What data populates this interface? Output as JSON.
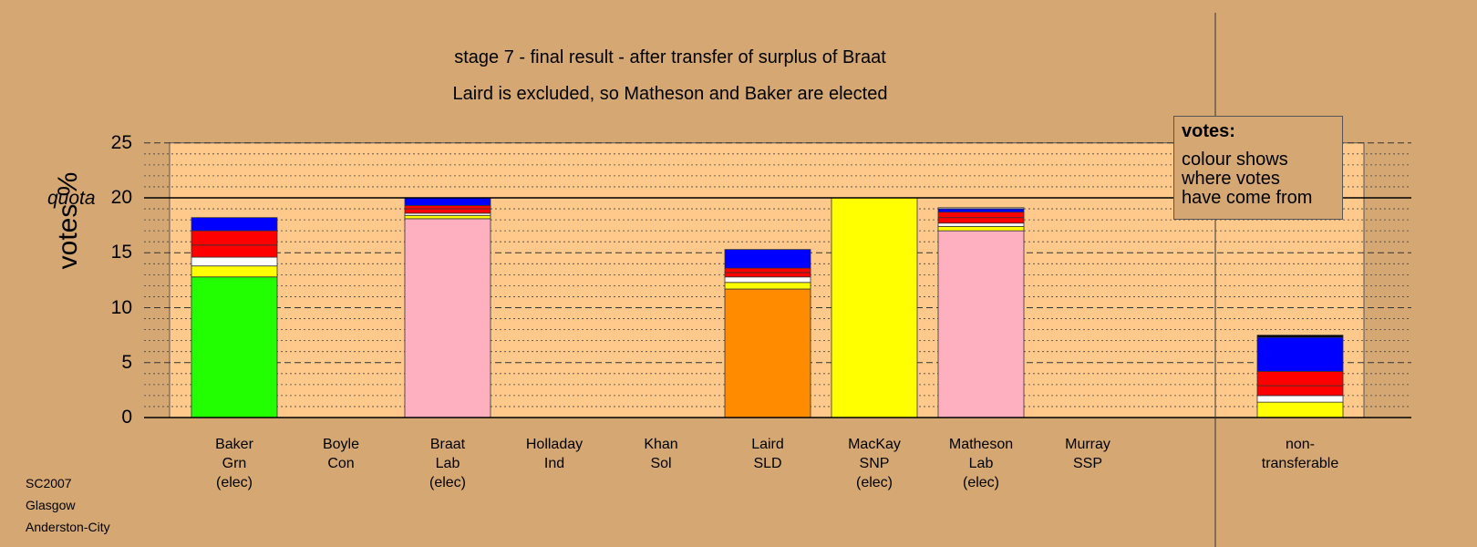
{
  "chart_data": {
    "type": "bar",
    "stacked": true,
    "title": "stage 7 - final result - after transfer of surplus of Braat",
    "subtitle": "Laird is excluded, so Matheson and Baker are elected",
    "ylabel": "votes %",
    "ylim": [
      0,
      25
    ],
    "yticks": [
      0,
      5,
      10,
      15,
      20,
      25
    ],
    "quota": {
      "label": "quota",
      "value": 20
    },
    "grid": "dashed major lines at 5, dotted minor lines at 1",
    "legend": {
      "heading": "votes:",
      "lines": [
        "colour shows",
        "where votes",
        "have come from"
      ],
      "position": "top-right"
    },
    "categories": [
      {
        "name": "Baker",
        "party": "Grn",
        "status": "(elec)"
      },
      {
        "name": "Boyle",
        "party": "Con",
        "status": ""
      },
      {
        "name": "Braat",
        "party": "Lab",
        "status": "(elec)"
      },
      {
        "name": "Holladay",
        "party": "Ind",
        "status": ""
      },
      {
        "name": "Khan",
        "party": "Sol",
        "status": ""
      },
      {
        "name": "Laird",
        "party": "SLD",
        "status": ""
      },
      {
        "name": "MacKay",
        "party": "SNP",
        "status": "(elec)"
      },
      {
        "name": "Matheson",
        "party": "Lab",
        "status": "(elec)"
      },
      {
        "name": "Murray",
        "party": "SSP",
        "status": ""
      },
      {
        "name": "non-",
        "party": "transferable",
        "status": ""
      }
    ],
    "stacks": [
      [
        {
          "value": 12.8,
          "color": "#22ff00"
        },
        {
          "value": 1.0,
          "color": "#ffff00"
        },
        {
          "value": 0.8,
          "color": "#ffffff"
        },
        {
          "value": 1.1,
          "color": "#ff0000"
        },
        {
          "value": 1.3,
          "color": "#ff0000"
        },
        {
          "value": 1.2,
          "color": "#0000ff"
        }
      ],
      [],
      [
        {
          "value": 18.1,
          "color": "#ffb0c0"
        },
        {
          "value": 0.3,
          "color": "#ffff00"
        },
        {
          "value": 0.2,
          "color": "#ffffff"
        },
        {
          "value": 0.4,
          "color": "#ff0000"
        },
        {
          "value": 0.3,
          "color": "#ff0000"
        },
        {
          "value": 0.7,
          "color": "#0000ff"
        }
      ],
      [],
      [],
      [
        {
          "value": 11.7,
          "color": "#ff8c00"
        },
        {
          "value": 0.6,
          "color": "#ffff00"
        },
        {
          "value": 0.5,
          "color": "#ffffff"
        },
        {
          "value": 0.4,
          "color": "#ff0000"
        },
        {
          "value": 0.4,
          "color": "#ff0000"
        },
        {
          "value": 1.7,
          "color": "#0000ff"
        }
      ],
      [
        {
          "value": 20.0,
          "color": "#ffff00"
        }
      ],
      [
        {
          "value": 17.0,
          "color": "#ffb0c0"
        },
        {
          "value": 0.4,
          "color": "#ffff00"
        },
        {
          "value": 0.3,
          "color": "#ffffff"
        },
        {
          "value": 0.5,
          "color": "#ff0000"
        },
        {
          "value": 0.5,
          "color": "#ff0000"
        },
        {
          "value": 0.3,
          "color": "#0000ff"
        },
        {
          "value": 0.1,
          "color": "#ffffff"
        }
      ],
      [],
      [
        {
          "value": 1.4,
          "color": "#ffff00"
        },
        {
          "value": 0.6,
          "color": "#ffffff"
        },
        {
          "value": 0.9,
          "color": "#ff0000"
        },
        {
          "value": 1.3,
          "color": "#ff0000"
        },
        {
          "value": 3.1,
          "color": "#0000ff"
        },
        {
          "value": 0.2,
          "color": "#000000"
        }
      ]
    ],
    "colors": {
      "background": "#d4a773",
      "plot_area": "#ffc98b"
    }
  },
  "footer": {
    "election": "SC2007",
    "council": "Glasgow",
    "ward": "Anderston-City"
  }
}
